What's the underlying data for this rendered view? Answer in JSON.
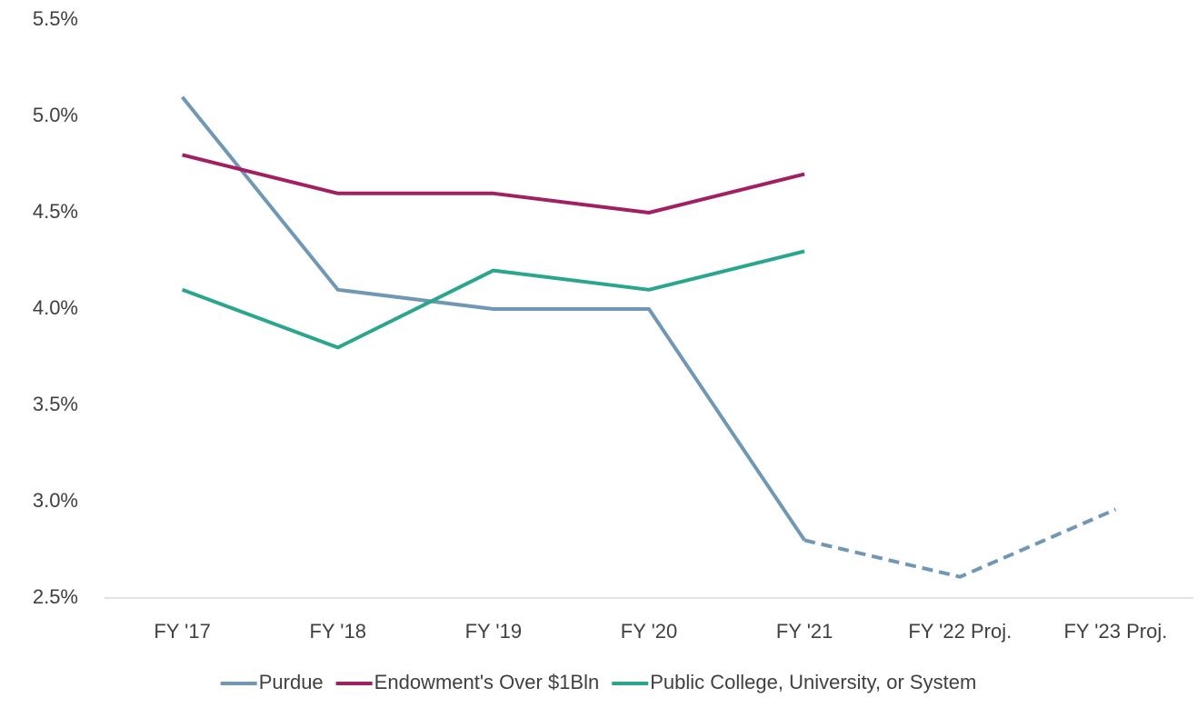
{
  "chart_data": {
    "type": "line",
    "categories": [
      "FY '17",
      "FY '18",
      "FY '19",
      "FY '20",
      "FY '21",
      "FY '22 Proj.",
      "FY '23 Proj."
    ],
    "series": [
      {
        "name": "Purdue",
        "color": "#7098b5",
        "values": [
          5.1,
          4.1,
          4.0,
          4.0,
          2.8,
          2.61,
          2.96
        ],
        "dashed_from": 4
      },
      {
        "name": "Endowment's Over $1Bln",
        "color": "#a31f63",
        "values": [
          4.8,
          4.6,
          4.6,
          4.5,
          4.7,
          null,
          null
        ]
      },
      {
        "name": "Public College, University, or System",
        "color": "#2aa58e",
        "values": [
          4.1,
          3.8,
          4.2,
          4.1,
          4.3,
          null,
          null
        ]
      }
    ],
    "ylim": [
      2.5,
      5.5
    ],
    "yticks": [
      {
        "value": 2.5,
        "label": "2.5%"
      },
      {
        "value": 3.0,
        "label": "3.0%"
      },
      {
        "value": 3.5,
        "label": "3.5%"
      },
      {
        "value": 4.0,
        "label": "4.0%"
      },
      {
        "value": 4.5,
        "label": "4.5%"
      },
      {
        "value": 5.0,
        "label": "5.0%"
      },
      {
        "value": 5.5,
        "label": "5.5%"
      }
    ],
    "grid": false,
    "legend": "bottom"
  }
}
